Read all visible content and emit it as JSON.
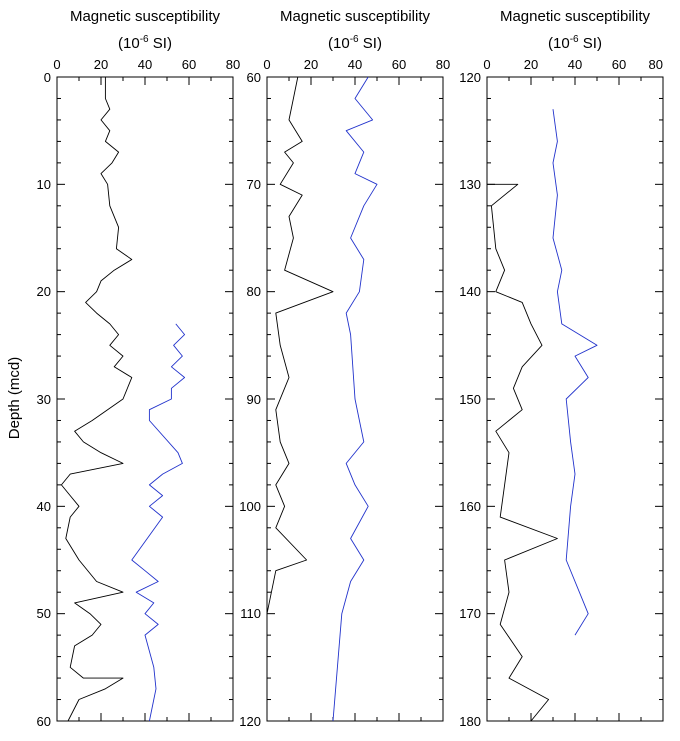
{
  "figure": {
    "y_axis_label": "Depth (mcd)"
  },
  "chart_data": [
    {
      "type": "line",
      "title": "Magnetic susceptibility",
      "subtitle_base": "(10",
      "subtitle_exponent": "-6",
      "subtitle_tail": " SI)",
      "xlabel": "Magnetic susceptibility (10-6 SI)",
      "ylabel": "Depth (mcd)",
      "xlim": [
        0,
        80
      ],
      "ylim": [
        60,
        0
      ],
      "x_ticks": [
        0,
        20,
        40,
        60,
        80
      ],
      "y_ticks": [
        0,
        10,
        20,
        30,
        40,
        50,
        60
      ],
      "x_tick_labels": [
        "0",
        "20",
        "40",
        "60",
        "80"
      ],
      "y_tick_labels": [
        "0",
        "10",
        "20",
        "30",
        "40",
        "50",
        "60"
      ],
      "x_axis_position": "top",
      "grid": false,
      "series": [
        {
          "color": "#000000",
          "points": [
            [
              22,
              0
            ],
            [
              22,
              2
            ],
            [
              24,
              3
            ],
            [
              20,
              4
            ],
            [
              24,
              5
            ],
            [
              22,
              6
            ],
            [
              28,
              7
            ],
            [
              25,
              8
            ],
            [
              20,
              9
            ],
            [
              23,
              10
            ],
            [
              24,
              12
            ],
            [
              28,
              14
            ],
            [
              27,
              16
            ],
            [
              34,
              17
            ],
            [
              26,
              18
            ],
            [
              20,
              19
            ],
            [
              18,
              20
            ],
            [
              13,
              21
            ],
            [
              18,
              22
            ],
            [
              24,
              23
            ],
            [
              28,
              24
            ],
            [
              24,
              25
            ],
            [
              30,
              26
            ],
            [
              26,
              27
            ],
            [
              34,
              28
            ],
            [
              30,
              30
            ],
            [
              16,
              32
            ],
            [
              8,
              33
            ],
            [
              12,
              34
            ],
            [
              20,
              35
            ],
            [
              30,
              36
            ],
            [
              6,
              37
            ],
            [
              2,
              38
            ],
            [
              6,
              39
            ],
            [
              10,
              40
            ],
            [
              6,
              41
            ],
            [
              4,
              43
            ],
            [
              10,
              45
            ],
            [
              18,
              47
            ],
            [
              30,
              48
            ],
            [
              8,
              49
            ],
            [
              15,
              50
            ],
            [
              20,
              51
            ],
            [
              16,
              52
            ],
            [
              8,
              53
            ],
            [
              6,
              55
            ],
            [
              12,
              56
            ],
            [
              30,
              56
            ],
            [
              22,
              57
            ],
            [
              10,
              58
            ],
            [
              5,
              60
            ]
          ]
        },
        {
          "color": "#2233cc",
          "points": [
            [
              54,
              23
            ],
            [
              58,
              24
            ],
            [
              53,
              25
            ],
            [
              57,
              26
            ],
            [
              52,
              27
            ],
            [
              58,
              28
            ],
            [
              52,
              29
            ],
            [
              52,
              30
            ],
            [
              42,
              31
            ],
            [
              42,
              32
            ],
            [
              55,
              35
            ],
            [
              57,
              36
            ],
            [
              48,
              37
            ],
            [
              42,
              38
            ],
            [
              48,
              39
            ],
            [
              42,
              40
            ],
            [
              48,
              41
            ],
            [
              34,
              45
            ],
            [
              40,
              46
            ],
            [
              46,
              47
            ],
            [
              36,
              48
            ],
            [
              44,
              49
            ],
            [
              40,
              50
            ],
            [
              46,
              51
            ],
            [
              40,
              52
            ],
            [
              44,
              55
            ],
            [
              45,
              57
            ],
            [
              44,
              58
            ],
            [
              42,
              60
            ]
          ]
        }
      ]
    },
    {
      "type": "line",
      "title": "Magnetic susceptibility",
      "subtitle_base": "(10",
      "subtitle_exponent": "-6",
      "subtitle_tail": " SI)",
      "xlabel": "Magnetic susceptibility (10-6 SI)",
      "ylabel": "Depth (mcd)",
      "xlim": [
        0,
        80
      ],
      "ylim": [
        120,
        60
      ],
      "x_ticks": [
        0,
        20,
        40,
        60,
        80
      ],
      "y_ticks": [
        60,
        70,
        80,
        90,
        100,
        110,
        120
      ],
      "x_tick_labels": [
        "0",
        "20",
        "40",
        "60",
        "80"
      ],
      "y_tick_labels": [
        "60",
        "70",
        "80",
        "90",
        "100",
        "110",
        "120"
      ],
      "x_axis_position": "top",
      "grid": false,
      "series": [
        {
          "color": "#000000",
          "points": [
            [
              14,
              60
            ],
            [
              12,
              62
            ],
            [
              10,
              64
            ],
            [
              16,
              66
            ],
            [
              8,
              67
            ],
            [
              12,
              68
            ],
            [
              6,
              70
            ],
            [
              16,
              71
            ],
            [
              10,
              73
            ],
            [
              12,
              75
            ],
            [
              8,
              78
            ],
            [
              30,
              80
            ],
            [
              4,
              82
            ],
            [
              6,
              85
            ],
            [
              10,
              88
            ],
            [
              4,
              91
            ],
            [
              6,
              94
            ],
            [
              10,
              96
            ],
            [
              4,
              98
            ],
            [
              8,
              100
            ],
            [
              4,
              102
            ],
            [
              18,
              105
            ],
            [
              4,
              106
            ],
            [
              0,
              110
            ],
            [
              0,
              120
            ]
          ]
        },
        {
          "color": "#2233cc",
          "points": [
            [
              46,
              60
            ],
            [
              40,
              62
            ],
            [
              48,
              64
            ],
            [
              36,
              65
            ],
            [
              44,
              67
            ],
            [
              40,
              69
            ],
            [
              50,
              70
            ],
            [
              44,
              72
            ],
            [
              38,
              75
            ],
            [
              44,
              77
            ],
            [
              42,
              80
            ],
            [
              36,
              82
            ],
            [
              38,
              84
            ],
            [
              40,
              90
            ],
            [
              42,
              92
            ],
            [
              44,
              94
            ],
            [
              36,
              96
            ],
            [
              40,
              98
            ],
            [
              46,
              100
            ],
            [
              38,
              103
            ],
            [
              44,
              105
            ],
            [
              38,
              107
            ],
            [
              34,
              110
            ],
            [
              32,
              115
            ],
            [
              30,
              120
            ]
          ]
        }
      ]
    },
    {
      "type": "line",
      "title": "Magnetic susceptibility",
      "subtitle_base": "(10",
      "subtitle_exponent": "-6",
      "subtitle_tail": " SI)",
      "xlabel": "Magnetic susceptibility (10-6 SI)",
      "ylabel": "Depth (mcd)",
      "xlim": [
        0,
        80
      ],
      "ylim": [
        180,
        120
      ],
      "x_ticks": [
        0,
        20,
        40,
        60,
        80
      ],
      "y_ticks": [
        120,
        130,
        140,
        150,
        160,
        170,
        180
      ],
      "x_tick_labels": [
        "0",
        "20",
        "40",
        "60",
        "80"
      ],
      "y_tick_labels": [
        "120",
        "130",
        "140",
        "150",
        "160",
        "170",
        "180"
      ],
      "x_axis_position": "top",
      "grid": false,
      "series": [
        {
          "color": "#000000",
          "points": [
            [
              0,
              122
            ],
            [
              0,
              130
            ],
            [
              14,
              130
            ],
            [
              2,
              132
            ],
            [
              4,
              136
            ],
            [
              8,
              138
            ],
            [
              4,
              140
            ],
            [
              16,
              141
            ],
            [
              20,
              143
            ],
            [
              25,
              145
            ],
            [
              16,
              147
            ],
            [
              12,
              149
            ],
            [
              16,
              151
            ],
            [
              4,
              153
            ],
            [
              10,
              155
            ],
            [
              8,
              158
            ],
            [
              6,
              161
            ],
            [
              32,
              163
            ],
            [
              8,
              165
            ],
            [
              10,
              168
            ],
            [
              6,
              171
            ],
            [
              16,
              174
            ],
            [
              10,
              176
            ],
            [
              28,
              178
            ],
            [
              20,
              180
            ]
          ]
        },
        {
          "color": "#2233cc",
          "points": [
            [
              30,
              123
            ],
            [
              32,
              126
            ],
            [
              30,
              128
            ],
            [
              32,
              131
            ],
            [
              30,
              135
            ],
            [
              34,
              138
            ],
            [
              32,
              140
            ],
            [
              34,
              143
            ],
            [
              50,
              145
            ],
            [
              40,
              146
            ],
            [
              46,
              148
            ],
            [
              36,
              150
            ],
            [
              38,
              154
            ],
            [
              40,
              157
            ],
            [
              38,
              160
            ],
            [
              36,
              165
            ],
            [
              42,
              168
            ],
            [
              46,
              170
            ],
            [
              40,
              172
            ]
          ]
        }
      ]
    }
  ]
}
